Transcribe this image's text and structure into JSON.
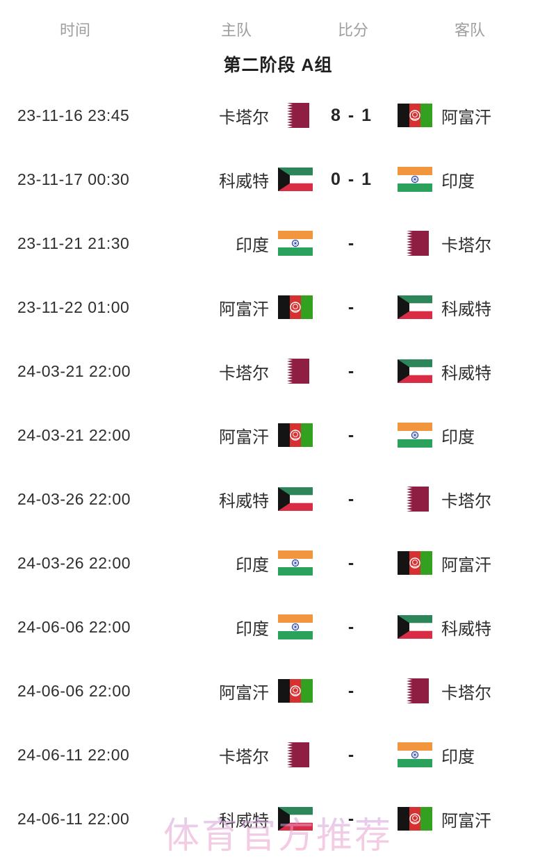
{
  "header": {
    "columns": [
      {
        "key": "time",
        "label": "时间"
      },
      {
        "key": "home",
        "label": "主队"
      },
      {
        "key": "score",
        "label": "比分"
      },
      {
        "key": "away",
        "label": "客队"
      }
    ]
  },
  "section_title": "第二阶段 A组",
  "matches": [
    {
      "time": "23-11-16 23:45",
      "home": "卡塔尔",
      "home_flag": "qatar-flag",
      "score": "8 - 1",
      "away": "阿富汗",
      "away_flag": "afghanistan-flag"
    },
    {
      "time": "23-11-17 00:30",
      "home": "科威特",
      "home_flag": "kuwait-flag",
      "score": "0 - 1",
      "away": "印度",
      "away_flag": "india-flag"
    },
    {
      "time": "23-11-21 21:30",
      "home": "印度",
      "home_flag": "india-flag",
      "score": "-",
      "away": "卡塔尔",
      "away_flag": "qatar-flag"
    },
    {
      "time": "23-11-22 01:00",
      "home": "阿富汗",
      "home_flag": "afghanistan-flag",
      "score": "-",
      "away": "科威特",
      "away_flag": "kuwait-flag"
    },
    {
      "time": "24-03-21 22:00",
      "home": "卡塔尔",
      "home_flag": "qatar-flag",
      "score": "-",
      "away": "科威特",
      "away_flag": "kuwait-flag"
    },
    {
      "time": "24-03-21 22:00",
      "home": "阿富汗",
      "home_flag": "afghanistan-flag",
      "score": "-",
      "away": "印度",
      "away_flag": "india-flag"
    },
    {
      "time": "24-03-26 22:00",
      "home": "科威特",
      "home_flag": "kuwait-flag",
      "score": "-",
      "away": "卡塔尔",
      "away_flag": "qatar-flag"
    },
    {
      "time": "24-03-26 22:00",
      "home": "印度",
      "home_flag": "india-flag",
      "score": "-",
      "away": "阿富汗",
      "away_flag": "afghanistan-flag"
    },
    {
      "time": "24-06-06 22:00",
      "home": "印度",
      "home_flag": "india-flag",
      "score": "-",
      "away": "科威特",
      "away_flag": "kuwait-flag"
    },
    {
      "time": "24-06-06 22:00",
      "home": "阿富汗",
      "home_flag": "afghanistan-flag",
      "score": "-",
      "away": "卡塔尔",
      "away_flag": "qatar-flag"
    },
    {
      "time": "24-06-11 22:00",
      "home": "卡塔尔",
      "home_flag": "qatar-flag",
      "score": "-",
      "away": "印度",
      "away_flag": "india-flag"
    },
    {
      "time": "24-06-11 22:00",
      "home": "科威特",
      "home_flag": "kuwait-flag",
      "score": "-",
      "away": "阿富汗",
      "away_flag": "afghanistan-flag"
    }
  ],
  "watermark": "体育官方推荐",
  "colors": {
    "qatar_maroon": "#8f1f42",
    "kuwait_green": "#2d8659",
    "kuwait_red": "#d92c45",
    "kuwait_black": "#141414",
    "india_saffron": "#f2953f",
    "india_green": "#2aa25c",
    "india_chakra_blue": "#2743a0",
    "afghan_black": "#141414",
    "afghan_red": "#d63030",
    "afghan_green": "#32a11f",
    "header_gray": "#9e9e9e",
    "text_dark": "#2e2e2e",
    "watermark_pink": "#f6a2c6",
    "watermark_purple": "#b3a2e6"
  }
}
